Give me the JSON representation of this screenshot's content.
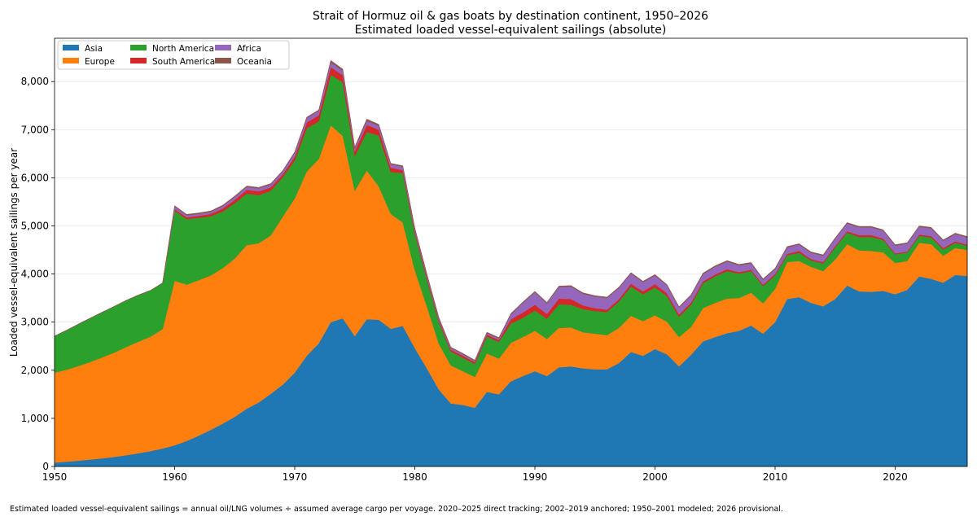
{
  "chart_data": {
    "type": "area",
    "stacked": true,
    "title": "Strait of Hormuz oil & gas boats by destination continent, 1950–2026",
    "subtitle": "Estimated loaded vessel-equivalent sailings (absolute)",
    "xlabel": "",
    "ylabel": "Loaded vessel-equivalent sailings per year",
    "xlim": [
      1950,
      2026
    ],
    "ylim": [
      0,
      8900
    ],
    "x_ticks": [
      1950,
      1960,
      1970,
      1980,
      1990,
      2000,
      2010,
      2020
    ],
    "y_ticks": [
      0,
      1000,
      2000,
      3000,
      4000,
      5000,
      6000,
      7000,
      8000
    ],
    "y_tick_labels": [
      "0",
      "1,000",
      "2,000",
      "3,000",
      "4,000",
      "5,000",
      "6,000",
      "7,000",
      "8,000"
    ],
    "grid": "horizontal",
    "legend_position": "top-left",
    "x": [
      1950,
      1951,
      1952,
      1953,
      1954,
      1955,
      1956,
      1957,
      1958,
      1959,
      1960,
      1961,
      1962,
      1963,
      1964,
      1965,
      1966,
      1967,
      1968,
      1969,
      1970,
      1971,
      1972,
      1973,
      1974,
      1975,
      1976,
      1977,
      1978,
      1979,
      1980,
      1981,
      1982,
      1983,
      1984,
      1985,
      1986,
      1987,
      1988,
      1989,
      1990,
      1991,
      1992,
      1993,
      1994,
      1995,
      1996,
      1997,
      1998,
      1999,
      2000,
      2001,
      2002,
      2003,
      2004,
      2005,
      2006,
      2007,
      2008,
      2009,
      2010,
      2011,
      2012,
      2013,
      2014,
      2015,
      2016,
      2017,
      2018,
      2019,
      2020,
      2021,
      2022,
      2023,
      2024,
      2025,
      2026
    ],
    "series": [
      {
        "name": "Asia",
        "color": "#1f77b4",
        "values": [
          80,
          100,
          120,
          145,
          170,
          200,
          235,
          275,
          320,
          375,
          440,
          530,
          640,
          760,
          890,
          1030,
          1200,
          1330,
          1510,
          1700,
          1950,
          2300,
          2560,
          3000,
          3080,
          2710,
          3060,
          3050,
          2860,
          2920,
          2460,
          2040,
          1600,
          1310,
          1280,
          1220,
          1550,
          1500,
          1770,
          1880,
          1980,
          1880,
          2060,
          2080,
          2040,
          2020,
          2020,
          2150,
          2380,
          2300,
          2440,
          2330,
          2080,
          2320,
          2600,
          2690,
          2770,
          2820,
          2930,
          2760,
          3000,
          3480,
          3520,
          3400,
          3330,
          3480,
          3760,
          3640,
          3630,
          3650,
          3580,
          3670,
          3950,
          3900,
          3820,
          3980,
          3960
        ]
      },
      {
        "name": "Europe",
        "color": "#ff7f0e",
        "values": [
          1870,
          1910,
          1970,
          2030,
          2100,
          2170,
          2250,
          2320,
          2380,
          2480,
          3420,
          3250,
          3230,
          3210,
          3230,
          3290,
          3400,
          3310,
          3290,
          3490,
          3620,
          3830,
          3830,
          4090,
          3790,
          3020,
          3090,
          2770,
          2390,
          2150,
          1620,
          1290,
          950,
          790,
          700,
          640,
          800,
          740,
          800,
          810,
          840,
          770,
          820,
          810,
          750,
          740,
          710,
          730,
          750,
          720,
          700,
          680,
          610,
          580,
          690,
          710,
          720,
          680,
          680,
          630,
          690,
          770,
          750,
          750,
          730,
          820,
          860,
          850,
          850,
          800,
          650,
          600,
          700,
          720,
          560,
          560,
          540
        ]
      },
      {
        "name": "North America",
        "color": "#2ca02c",
        "values": [
          760,
          820,
          870,
          910,
          940,
          960,
          970,
          970,
          960,
          960,
          1460,
          1360,
          1300,
          1230,
          1180,
          1150,
          1070,
          1000,
          930,
          820,
          790,
          900,
          780,
          1050,
          1120,
          720,
          800,
          1060,
          870,
          1030,
          760,
          560,
          450,
          290,
          280,
          270,
          350,
          350,
          400,
          400,
          420,
          420,
          490,
          470,
          480,
          470,
          480,
          550,
          610,
          560,
          580,
          530,
          420,
          460,
          520,
          550,
          570,
          510,
          450,
          360,
          280,
          140,
          170,
          130,
          160,
          250,
          240,
          280,
          290,
          260,
          180,
          180,
          140,
          140,
          130,
          110,
          90
        ]
      },
      {
        "name": "South America",
        "color": "#d62728",
        "values": [
          0,
          0,
          0,
          0,
          0,
          0,
          0,
          0,
          0,
          0,
          30,
          40,
          40,
          50,
          60,
          70,
          80,
          80,
          70,
          60,
          80,
          120,
          130,
          160,
          140,
          100,
          150,
          120,
          90,
          60,
          50,
          50,
          40,
          40,
          40,
          40,
          40,
          40,
          90,
          110,
          120,
          100,
          120,
          120,
          80,
          60,
          50,
          50,
          60,
          60,
          70,
          60,
          50,
          50,
          40,
          40,
          40,
          30,
          30,
          30,
          30,
          30,
          40,
          30,
          30,
          30,
          30,
          40,
          40,
          30,
          20,
          20,
          30,
          30,
          30,
          30,
          20
        ]
      },
      {
        "name": "Africa",
        "color": "#9467bd",
        "values": [
          0,
          0,
          0,
          0,
          0,
          0,
          0,
          0,
          0,
          0,
          50,
          40,
          40,
          40,
          50,
          60,
          60,
          60,
          60,
          60,
          80,
          90,
          90,
          100,
          90,
          60,
          80,
          80,
          70,
          70,
          50,
          50,
          40,
          30,
          30,
          20,
          30,
          30,
          100,
          200,
          260,
          220,
          240,
          260,
          240,
          240,
          240,
          230,
          210,
          190,
          180,
          160,
          140,
          140,
          150,
          160,
          160,
          140,
          130,
          100,
          100,
          130,
          130,
          130,
          130,
          150,
          160,
          160,
          160,
          160,
          160,
          160,
          160,
          160,
          150,
          150,
          150
        ]
      },
      {
        "name": "Oceania",
        "color": "#8c564b",
        "values": [
          0,
          0,
          0,
          0,
          0,
          0,
          0,
          0,
          0,
          0,
          20,
          20,
          20,
          20,
          20,
          20,
          20,
          20,
          20,
          20,
          20,
          20,
          20,
          40,
          40,
          30,
          40,
          30,
          20,
          20,
          20,
          20,
          20,
          20,
          20,
          20,
          20,
          20,
          20,
          20,
          20,
          20,
          20,
          20,
          20,
          20,
          20,
          20,
          20,
          20,
          20,
          20,
          20,
          20,
          20,
          20,
          20,
          20,
          20,
          20,
          20,
          20,
          20,
          20,
          20,
          20,
          20,
          20,
          20,
          20,
          20,
          20,
          20,
          20,
          20,
          20,
          20
        ]
      }
    ],
    "footnote": "Estimated loaded vessel-equivalent sailings = annual oil/LNG volumes ÷ assumed average cargo per voyage. 2020–2025 direct tracking; 2002–2019 anchored; 1950–2001 modeled; 2026 provisional."
  }
}
